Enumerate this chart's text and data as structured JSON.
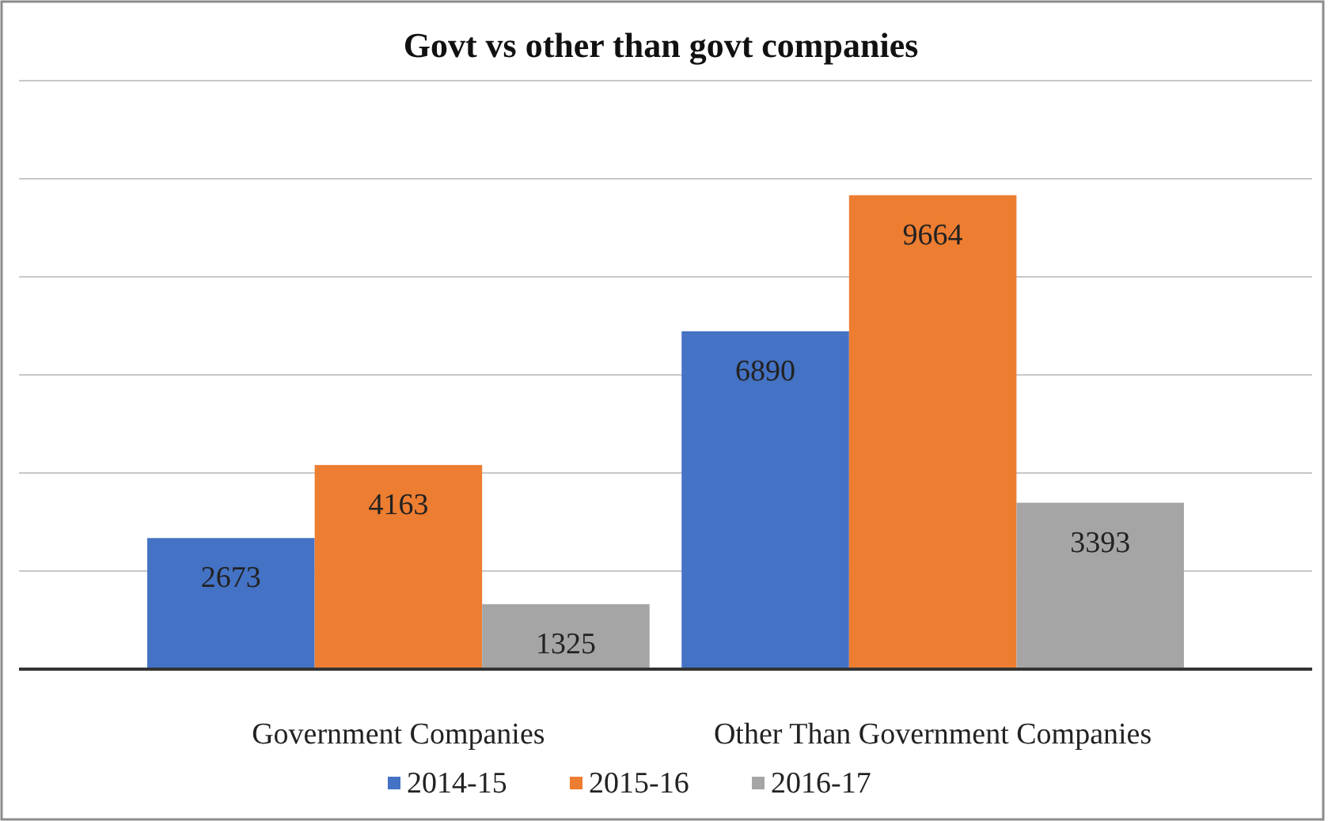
{
  "chart_data": {
    "type": "bar",
    "title": "Govt vs other than govt companies",
    "categories": [
      "Government Companies",
      "Other Than Government Companies"
    ],
    "series": [
      {
        "name": "2014-15",
        "color": "#4472c4",
        "values": [
          2673,
          6890
        ]
      },
      {
        "name": "2015-16",
        "color": "#ed7d31",
        "values": [
          4163,
          9664
        ]
      },
      {
        "name": "2016-17",
        "color": "#a5a5a5",
        "values": [
          1325,
          3393
        ]
      }
    ],
    "ylim": [
      0,
      12000
    ],
    "yticks": [
      {
        "value": 0,
        "label": null
      },
      {
        "value": 2000,
        "label": null
      },
      {
        "value": 4000,
        "label": null
      },
      {
        "value": 6000,
        "label": null
      },
      {
        "value": 8000,
        "label": null
      },
      {
        "value": 10000,
        "label": null
      },
      {
        "value": 12000,
        "label": null
      }
    ],
    "tick_labels": "x",
    "grid": "y",
    "data_labels": true,
    "legend": "bottom"
  }
}
